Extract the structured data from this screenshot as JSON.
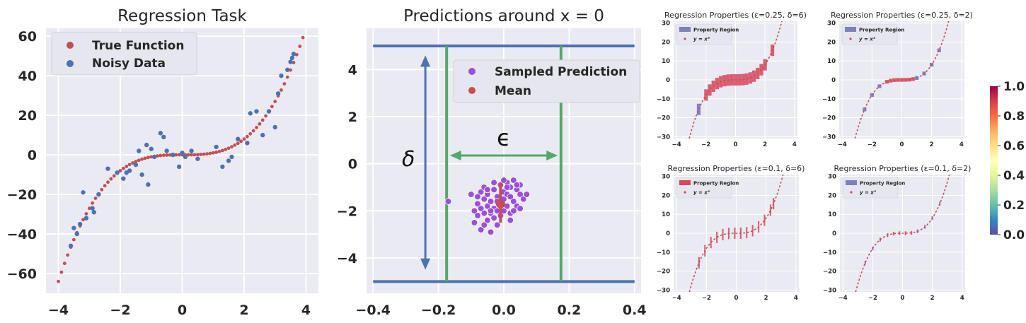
{
  "colors": {
    "panel_bg": "#eaeaf2",
    "grid": "#ffffff",
    "blue": "#4c72b0",
    "red": "#c44e52",
    "green": "#55a868",
    "purple": "#9b4fd9",
    "slate": "#7f7fbf",
    "crimson": "#d6475a",
    "text": "#262626"
  },
  "chart_data": [
    {
      "id": "regression-task",
      "type": "scatter",
      "title": "Regression Task",
      "xlim": [
        -4.4,
        4.4
      ],
      "ylim": [
        -70,
        64
      ],
      "xticks": [
        -4,
        -2,
        0,
        2,
        4
      ],
      "xtick_labels": [
        "−4",
        "−2",
        "0",
        "2",
        "4"
      ],
      "yticks": [
        -60,
        -40,
        -20,
        0,
        20,
        40,
        60
      ],
      "ytick_labels": [
        "−60",
        "−40",
        "−20",
        "0",
        "20",
        "40",
        "60"
      ],
      "legend": {
        "position": "top-left",
        "entries": [
          "True Function",
          "Noisy Data"
        ]
      },
      "series": [
        {
          "name": "True Function",
          "function": "y = x^3",
          "x_range": [
            -4,
            3.9
          ],
          "step": 0.1,
          "color": "red"
        },
        {
          "name": "Noisy Data",
          "color": "blue",
          "x": [
            -3.6,
            -3.5,
            -3.4,
            -3.3,
            -3.2,
            -3.1,
            -2.9,
            -2.85,
            -2.7,
            -2.4,
            -2.1,
            -1.9,
            -1.8,
            -1.7,
            -1.5,
            -1.4,
            -1.3,
            -1.15,
            -1.1,
            -1.0,
            -0.9,
            -0.7,
            -0.6,
            -0.5,
            -0.3,
            -0.1,
            0.0,
            0.1,
            0.3,
            0.5,
            1.1,
            1.3,
            1.5,
            1.6,
            1.8,
            2.1,
            2.2,
            2.4,
            2.6,
            2.8,
            3.0,
            3.1,
            3.2,
            3.4,
            3.5,
            3.55,
            3.6
          ],
          "y": [
            -46,
            -37,
            -40,
            -35,
            -19,
            -32,
            -27,
            -29,
            -20,
            -7,
            -9,
            -12,
            -9,
            -8,
            -5,
            2,
            -10,
            5,
            -15,
            3,
            -1,
            11,
            9,
            2,
            0,
            -6,
            1,
            -1,
            2,
            -2,
            4,
            -6,
            -3,
            -1,
            8,
            6,
            21,
            22,
            10,
            22,
            14,
            31,
            40,
            43,
            47,
            49,
            51
          ]
        }
      ]
    },
    {
      "id": "predictions",
      "type": "scatter",
      "title": "Predictions around x = 0",
      "xlim": [
        -0.42,
        0.42
      ],
      "ylim": [
        -5.5,
        5.75
      ],
      "xticks": [
        -0.4,
        -0.2,
        0.0,
        0.2,
        0.4
      ],
      "xtick_labels": [
        "−0.4",
        "−0.2",
        "0.0",
        "0.2",
        "0.4"
      ],
      "yticks": [
        -4,
        -2,
        0,
        2,
        4
      ],
      "ytick_labels": [
        "−4",
        "−2",
        "0",
        "2",
        "4"
      ],
      "legend": {
        "position": "upper-right",
        "entries": [
          "Sampled Prediction",
          "Mean"
        ]
      },
      "annotations": {
        "delta": "δ",
        "epsilon": "ϵ"
      },
      "bounds": {
        "y_upper": 5,
        "y_lower": -5,
        "x_left": -0.175,
        "x_right": 0.175
      },
      "arrows": {
        "delta_x": -0.24,
        "delta_y": [
          -4.5,
          4.6
        ],
        "epsilon_y": 0.35,
        "epsilon_x": [
          -0.165,
          0.165
        ]
      },
      "mean": {
        "x": -0.01,
        "y": -1.7,
        "bar_y": [
          -2.5,
          -0.8
        ]
      },
      "samples": {
        "x": [
          -0.17,
          -0.1,
          -0.09,
          -0.09,
          -0.08,
          -0.08,
          -0.07,
          -0.07,
          -0.07,
          -0.06,
          -0.06,
          -0.06,
          -0.05,
          -0.05,
          -0.05,
          -0.04,
          -0.04,
          -0.04,
          -0.03,
          -0.03,
          -0.03,
          -0.02,
          -0.02,
          -0.02,
          -0.01,
          -0.01,
          -0.01,
          0.0,
          0.0,
          0.0,
          0.01,
          0.01,
          0.01,
          0.02,
          0.02,
          0.02,
          0.03,
          0.03,
          0.04,
          0.04,
          0.05,
          0.05,
          0.06,
          -0.06,
          0.02,
          0.03,
          -0.02,
          0.0,
          -0.03,
          0.05,
          -0.08,
          0.04,
          0.01,
          -0.05,
          0.07,
          -0.04
        ],
        "y": [
          -1.6,
          -1.3,
          -2.0,
          -2.5,
          -1.7,
          -2.2,
          -1.2,
          -1.9,
          -2.8,
          -1.5,
          -2.1,
          -1.0,
          -1.8,
          -2.4,
          -1.3,
          -1.6,
          -2.1,
          -2.9,
          -1.1,
          -1.9,
          -2.3,
          -1.4,
          -2.0,
          -1.6,
          -0.9,
          -1.7,
          -2.2,
          -1.2,
          -1.5,
          -2.0,
          -0.8,
          -1.3,
          -1.8,
          -1.0,
          -1.4,
          -2.1,
          -0.7,
          -1.6,
          -1.1,
          -1.8,
          -1.3,
          -0.9,
          -1.5,
          -2.6,
          -2.4,
          -2.0,
          -2.6,
          -0.7,
          -0.8,
          -1.9,
          -1.4,
          -0.9,
          -1.0,
          -1.1,
          -1.3,
          -2.0
        ]
      }
    },
    {
      "id": "rp-025-6",
      "type": "scatter",
      "title": "Regression Properties (ε=0.25, δ=6)",
      "xlim": [
        -4.2,
        4.2
      ],
      "ylim": [
        -31,
        31
      ],
      "xticks": [
        -4,
        -2,
        0,
        2,
        4
      ],
      "yticks": [
        -30,
        -20,
        -10,
        0,
        10,
        20,
        30
      ],
      "xtick_labels": [
        "−4",
        "−2",
        "0",
        "2",
        "4"
      ],
      "ytick_labels": [
        "−30",
        "−20",
        "−10",
        "0",
        "10",
        "20",
        "30"
      ],
      "eps": 0.25,
      "delta": 6,
      "box_color": "slate",
      "box_alpha": 1,
      "boxes_x": [
        -2.5
      ],
      "crimson_x": [
        -2.0,
        -1.75,
        -1.5,
        -1.25,
        -1.0,
        -0.75,
        -0.5,
        -0.25,
        0.0,
        0.25,
        0.5,
        0.75,
        1.0,
        1.25,
        1.5,
        1.75,
        2.0,
        2.5
      ],
      "legend": {
        "entries": [
          "Property Region",
          "y = x³"
        ]
      }
    },
    {
      "id": "rp-025-2",
      "type": "scatter",
      "title": "Regression Properties (ε=0.25, δ=2)",
      "xlim": [
        -4.2,
        4.2
      ],
      "ylim": [
        -31,
        31
      ],
      "xticks": [
        -4,
        -2,
        0,
        2,
        4
      ],
      "yticks": [
        -30,
        -20,
        -10,
        0,
        10,
        20,
        30
      ],
      "xtick_labels": [
        "−4",
        "−2",
        "0",
        "2",
        "4"
      ],
      "ytick_labels": [
        "−30",
        "−20",
        "−10",
        "0",
        "10",
        "20",
        "30"
      ],
      "eps": 0.25,
      "delta": 2,
      "box_color": "slate",
      "boxes_x": [
        -2.5,
        -2.0,
        -1.5,
        1.0,
        1.5,
        2.0,
        2.5
      ],
      "crimson_x": [
        -1.0,
        -0.75,
        -0.5,
        -0.25,
        0.0,
        0.25,
        0.5,
        0.75
      ],
      "legend": {
        "entries": [
          "Property Region",
          "y = x³"
        ]
      }
    },
    {
      "id": "rp-01-6",
      "type": "scatter",
      "title": "Regression Properties (ε=0.1, δ=6)",
      "xlim": [
        -4.2,
        4.2
      ],
      "ylim": [
        -31,
        31
      ],
      "xticks": [
        -4,
        -2,
        0,
        2,
        4
      ],
      "yticks": [
        -30,
        -20,
        -10,
        0,
        10,
        20,
        30
      ],
      "xtick_labels": [
        "−4",
        "−2",
        "0",
        "2",
        "4"
      ],
      "ytick_labels": [
        "−30",
        "−20",
        "−10",
        "0",
        "10",
        "20",
        "30"
      ],
      "eps": 0.1,
      "delta": 6,
      "box_color": "crimson",
      "boxes_x": [],
      "crimson_x": [
        -2.5,
        -2.1,
        -1.7,
        -1.3,
        -0.9,
        -0.5,
        -0.1,
        0.3,
        0.7,
        1.1,
        1.5,
        1.9,
        2.3,
        2.5
      ],
      "legend": {
        "entries": [
          "Property Region",
          "y = x³"
        ]
      }
    },
    {
      "id": "rp-01-2",
      "type": "scatter",
      "title": "Regression Properties (ε=0.1, δ=2)",
      "xlim": [
        -4.2,
        4.2
      ],
      "ylim": [
        -31,
        31
      ],
      "xticks": [
        -4,
        -2,
        0,
        2,
        4
      ],
      "yticks": [
        -30,
        -20,
        -10,
        0,
        10,
        20,
        30
      ],
      "xtick_labels": [
        "−4",
        "−2",
        "0",
        "2",
        "4"
      ],
      "ytick_labels": [
        "−30",
        "−20",
        "−10",
        "0",
        "10",
        "20",
        "30"
      ],
      "eps": 0.1,
      "delta": 2,
      "box_color": "slate",
      "boxes_x": [
        -2.5,
        -2.0,
        1.0,
        1.5,
        2.0,
        2.5
      ],
      "crimson_x": [
        -1.5,
        -1.0,
        -0.6,
        -0.2,
        0.2,
        0.6
      ],
      "legend": {
        "entries": [
          "Property Region",
          "y = x³"
        ]
      }
    },
    {
      "id": "colorbar",
      "type": "heatmap",
      "range": [
        0.0,
        1.0
      ],
      "ticks": [
        0.0,
        0.2,
        0.4,
        0.6,
        0.8,
        1.0
      ],
      "tick_labels": [
        "0.0",
        "0.2",
        "0.4",
        "0.6",
        "0.8",
        "1.0"
      ],
      "colormap": [
        "#5e4fa2",
        "#3288bd",
        "#66c2a5",
        "#abdda4",
        "#e6f598",
        "#ffffbf",
        "#fee08b",
        "#fdae61",
        "#f46d43",
        "#d53e4f",
        "#9e0142"
      ]
    }
  ]
}
